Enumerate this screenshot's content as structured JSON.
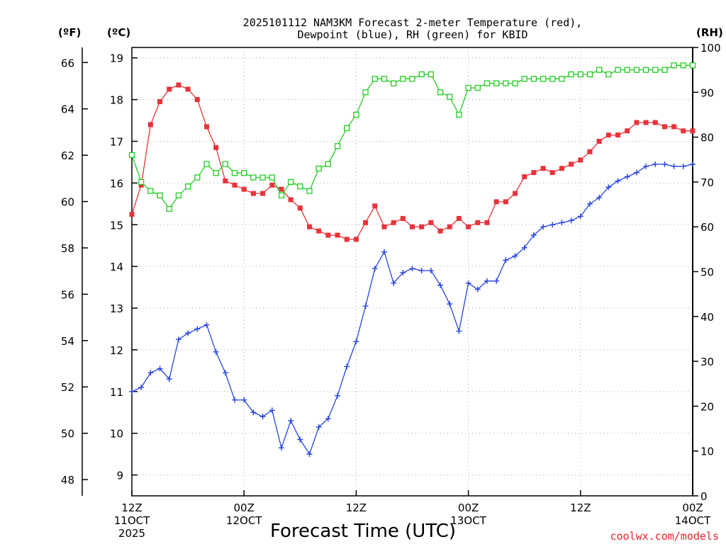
{
  "chart_data": {
    "type": "line",
    "title_line1": "2025101112 NAM3KM Forecast 2-meter Temperature (red),",
    "title_line2": "Dewpoint (blue), RH (green) for KBID",
    "xlabel": "Forecast Time (UTC)",
    "credit": "coolwx.com/models",
    "units": {
      "fahrenheit": "(ºF)",
      "celsius": "(ºC)",
      "rh": "(RH)"
    },
    "x_ticks": [
      {
        "hour": 0,
        "line1": "12Z",
        "line2": "11OCT",
        "line3": "2025"
      },
      {
        "hour": 12,
        "line1": "00Z",
        "line2": "12OCT",
        "line3": ""
      },
      {
        "hour": 24,
        "line1": "12Z",
        "line2": "",
        "line3": ""
      },
      {
        "hour": 36,
        "line1": "00Z",
        "line2": "13OCT",
        "line3": ""
      },
      {
        "hour": 48,
        "line1": "12Z",
        "line2": "",
        "line3": ""
      },
      {
        "hour": 60,
        "line1": "00Z",
        "line2": "14OCT",
        "line3": ""
      }
    ],
    "xlim": [
      0,
      60
    ],
    "celsius_ticks": [
      "9",
      "10",
      "11",
      "12",
      "13",
      "14",
      "15",
      "16",
      "17",
      "18",
      "19"
    ],
    "fahrenheit_ticks": [
      "48",
      "50",
      "52",
      "54",
      "56",
      "58",
      "60",
      "62",
      "64",
      "66"
    ],
    "rh_ticks": [
      "0",
      "10",
      "20",
      "30",
      "40",
      "50",
      "60",
      "70",
      "80",
      "90",
      "100"
    ],
    "ylim_celsius": [
      8.5,
      19.25
    ],
    "ylim_rh": [
      0,
      100
    ],
    "colors": {
      "temperature": "#e8333a",
      "dewpoint": "#2845e0",
      "rh": "#22cc22",
      "credit": "#e8242a"
    },
    "series": [
      {
        "name": "2-meter Temperature",
        "unit": "C",
        "marker": "filled-square",
        "values": [
          15.25,
          15.95,
          17.4,
          17.95,
          18.25,
          18.35,
          18.25,
          18.0,
          17.35,
          16.85,
          16.05,
          15.95,
          15.85,
          15.75,
          15.75,
          15.95,
          15.85,
          15.6,
          15.4,
          14.95,
          14.85,
          14.75,
          14.75,
          14.65,
          14.65,
          15.05,
          15.45,
          14.95,
          15.05,
          15.15,
          14.95,
          14.95,
          15.05,
          14.85,
          14.95,
          15.15,
          14.95,
          15.05,
          15.05,
          15.55,
          15.55,
          15.75,
          16.15,
          16.25,
          16.35,
          16.25,
          16.35,
          16.45,
          16.55,
          16.75,
          17.0,
          17.15,
          17.15,
          17.25,
          17.45,
          17.45,
          17.45,
          17.35,
          17.35,
          17.25,
          17.25
        ]
      },
      {
        "name": "Dewpoint",
        "unit": "C",
        "marker": "plus",
        "values": [
          11.0,
          11.1,
          11.45,
          11.55,
          11.3,
          12.25,
          12.4,
          12.5,
          12.6,
          11.95,
          11.45,
          10.8,
          10.8,
          10.5,
          10.4,
          10.55,
          9.65,
          10.3,
          9.85,
          9.5,
          10.15,
          10.35,
          10.9,
          11.6,
          12.2,
          13.05,
          13.95,
          14.35,
          13.6,
          13.85,
          13.95,
          13.9,
          13.9,
          13.55,
          13.1,
          12.45,
          13.6,
          13.45,
          13.65,
          13.65,
          14.15,
          14.25,
          14.45,
          14.75,
          14.95,
          15.0,
          15.05,
          15.1,
          15.2,
          15.5,
          15.65,
          15.9,
          16.05,
          16.15,
          16.25,
          16.4,
          16.45,
          16.45,
          16.4,
          16.4,
          16.45
        ]
      },
      {
        "name": "RH",
        "unit": "%",
        "marker": "open-square",
        "values": [
          76,
          70,
          68,
          67,
          64,
          67,
          69,
          71,
          74,
          72,
          74,
          72,
          72,
          71,
          71,
          71,
          67,
          70,
          69,
          68,
          73,
          74,
          78,
          82,
          85,
          90,
          93,
          93,
          92,
          93,
          93,
          94,
          94,
          90,
          89,
          85,
          91,
          91,
          92,
          92,
          92,
          92,
          93,
          93,
          93,
          93,
          93,
          94,
          94,
          94,
          95,
          94,
          95,
          95,
          95,
          95,
          95,
          95,
          96,
          96,
          96
        ]
      }
    ]
  }
}
